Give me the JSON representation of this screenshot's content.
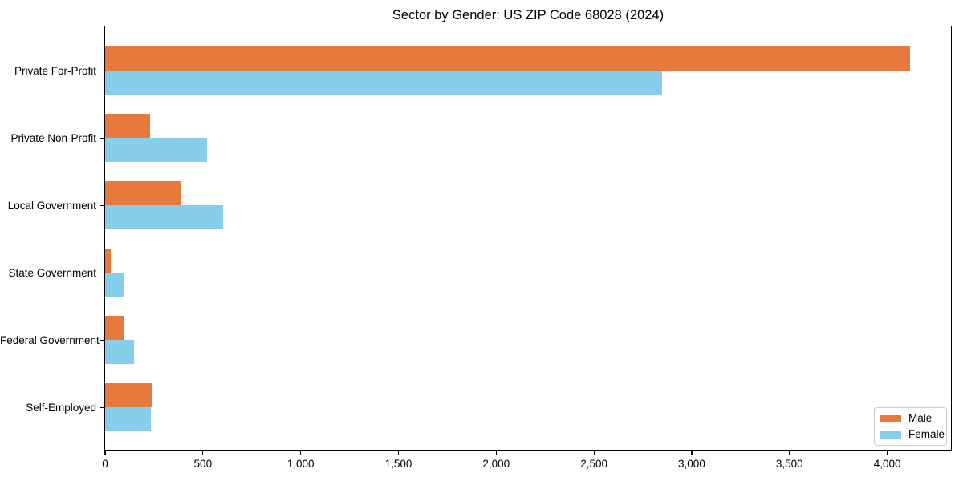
{
  "chart_data": {
    "type": "bar",
    "orientation": "horizontal",
    "title": "Sector by Gender: US ZIP Code 68028 (2024)",
    "categories": [
      "Private For-Profit",
      "Private Non-Profit",
      "Local Government",
      "State Government",
      "Federal Government",
      "Self-Employed"
    ],
    "series": [
      {
        "name": "Male",
        "color": "#e8793d",
        "values": [
          4120,
          230,
          390,
          30,
          95,
          245
        ]
      },
      {
        "name": "Female",
        "color": "#87ceeb",
        "values": [
          2850,
          525,
          605,
          95,
          150,
          235
        ]
      }
    ],
    "xlabel": "",
    "ylabel": "",
    "xlim": [
      0,
      4330
    ],
    "x_ticks": {
      "values": [
        0,
        500,
        1000,
        1500,
        2000,
        2500,
        3000,
        3500,
        4000
      ],
      "labels": [
        "0",
        "500",
        "1,000",
        "1,500",
        "2,000",
        "2,500",
        "3,000",
        "3,500",
        "4,000"
      ]
    },
    "grid": false,
    "legend": {
      "position": "lower right",
      "entries": [
        "Male",
        "Female"
      ]
    }
  },
  "colors": {
    "background": "#ffffff",
    "axis": "#000000",
    "text": "#000000",
    "legend_border": "#cccccc"
  }
}
